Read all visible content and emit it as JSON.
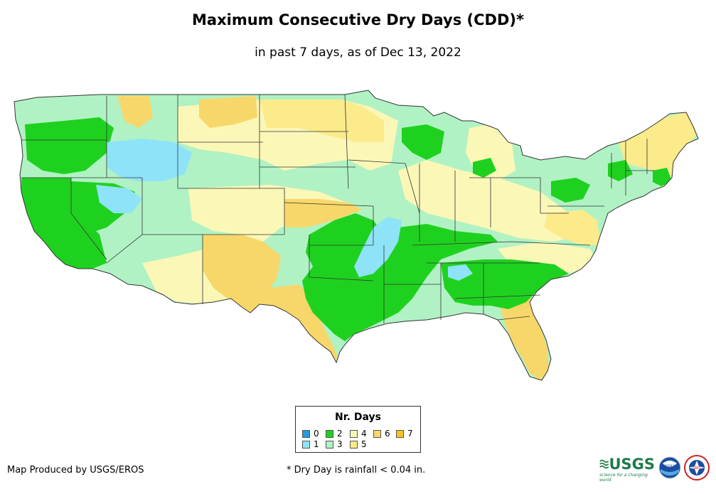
{
  "header": {
    "title": "Maximum Consecutive Dry Days (CDD)*",
    "subtitle": "in past 7 days, as of Dec 13, 2022"
  },
  "legend": {
    "title": "Nr. Days",
    "items": [
      {
        "label": "0",
        "color": "#1f9be0"
      },
      {
        "label": "1",
        "color": "#8fe3f8"
      },
      {
        "label": "2",
        "color": "#1fd11f"
      },
      {
        "label": "3",
        "color": "#b0f2c4"
      },
      {
        "label": "4",
        "color": "#fbf7b7"
      },
      {
        "label": "5",
        "color": "#fbeb8a"
      },
      {
        "label": "6",
        "color": "#f8d76a"
      },
      {
        "label": "7",
        "color": "#f6c324"
      }
    ]
  },
  "footer": {
    "credit": "Map Produced by USGS/EROS",
    "footnote": "* Dry Day is rainfall < 0.04 in.",
    "logos": {
      "usgs": "USGS",
      "usgs_tagline": "science for a changing world",
      "noaa": "noaa",
      "nws": "NWS"
    }
  },
  "icons": {
    "usgs_logo": "usgs-logo-icon",
    "noaa_logo": "noaa-logo-icon",
    "nws_logo": "nws-logo-icon"
  }
}
